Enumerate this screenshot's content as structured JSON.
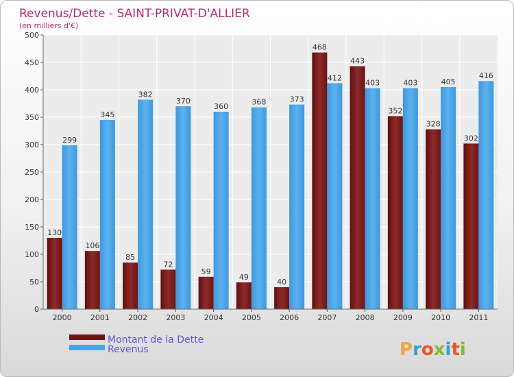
{
  "chart_data": {
    "type": "bar",
    "title": "Revenus/Dette - SAINT-PRIVAT-D'ALLIER",
    "subtitle": "(en milliers d'€)",
    "categories": [
      "2000",
      "2001",
      "2002",
      "2003",
      "2004",
      "2005",
      "2006",
      "2007",
      "2008",
      "2009",
      "2010",
      "2011"
    ],
    "series": [
      {
        "name": "Montant de la Dette",
        "color": "#7a1c1c",
        "values": [
          130,
          106,
          85,
          72,
          59,
          49,
          40,
          468,
          443,
          352,
          328,
          302
        ]
      },
      {
        "name": "Revenus",
        "color": "#4aa3e8",
        "values": [
          299,
          345,
          382,
          370,
          360,
          368,
          373,
          412,
          403,
          403,
          405,
          416
        ]
      }
    ],
    "ylim": [
      0,
      500
    ],
    "yticks": [
      0,
      50,
      100,
      150,
      200,
      250,
      300,
      350,
      400,
      450,
      500
    ],
    "grid": true,
    "legend_position": "bottom-left"
  },
  "branding": {
    "logo_text": "Proxiti"
  }
}
